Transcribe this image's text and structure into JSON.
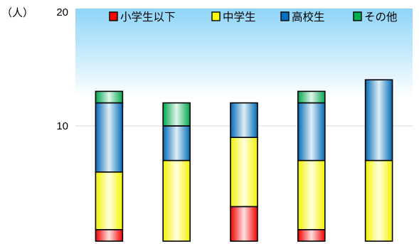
{
  "chart_data": {
    "type": "bar",
    "stacked": true,
    "unit_label": "（人）",
    "y_ticks": [
      "10",
      "20"
    ],
    "ylim": [
      0,
      20
    ],
    "grid": true,
    "legend_position": "top-right",
    "categories": [
      "",
      "",
      "",
      "",
      ""
    ],
    "series": [
      {
        "name": "小学生以下",
        "color": "#ff0000",
        "values": [
          1,
          0,
          3,
          1,
          0
        ]
      },
      {
        "name": "中学生",
        "color": "#ffff00",
        "values": [
          5,
          7,
          6,
          6,
          7
        ]
      },
      {
        "name": "高校生",
        "color": "#0070c0",
        "values": [
          6,
          3,
          3,
          5,
          7
        ]
      },
      {
        "name": "その他",
        "color": "#00b050",
        "values": [
          1,
          2,
          0,
          1,
          0
        ]
      }
    ]
  }
}
